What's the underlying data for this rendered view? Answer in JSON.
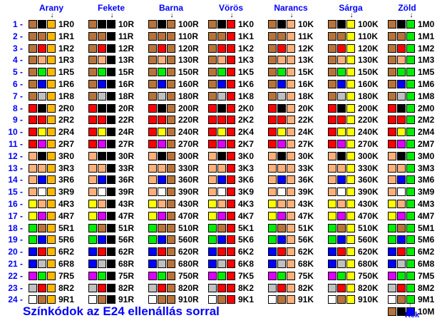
{
  "colors": {
    "0": "#000000",
    "1": "#b8733a",
    "2": "#ff0000",
    "3": "#ffb07a",
    "4": "#ffff00",
    "5": "#00ee00",
    "6": "#0000ff",
    "7": "#dd00ff",
    "8": "#c0c0c0",
    "9": "#ffffff",
    "G": "#ffb800"
  },
  "headers": [
    "Arany",
    "Fekete",
    "Barna",
    "Vörös",
    "Narancs",
    "Sárga",
    "Zöld"
  ],
  "multipliers": [
    "G",
    "0",
    "1",
    "2",
    "3",
    "4",
    "5"
  ],
  "row_numbers": [
    "1 -",
    "2 -",
    "3 -",
    "4 -",
    "5 -",
    "6 -",
    "7 -",
    "8 -",
    "9 -",
    "10 -",
    "11 -",
    "12 -",
    "13 -",
    "14 -",
    "15 -",
    "16 -",
    "17 -",
    "18 -",
    "19 -",
    "20 -",
    "21 -",
    "22 -",
    "23 -",
    "24 -"
  ],
  "e24_digits": [
    "10",
    "11",
    "12",
    "13",
    "15",
    "16",
    "18",
    "20",
    "22",
    "24",
    "27",
    "30",
    "33",
    "36",
    "39",
    "43",
    "47",
    "51",
    "56",
    "62",
    "68",
    "75",
    "82",
    "91"
  ],
  "value_labels": [
    [
      "1R0",
      "1R1",
      "1R2",
      "1R3",
      "1R5",
      "1R6",
      "1R8",
      "2R0",
      "2R2",
      "2R4",
      "2R7",
      "3R0",
      "3R3",
      "3R6",
      "3R9",
      "4R3",
      "4R7",
      "5R1",
      "5R6",
      "6R2",
      "6R8",
      "7R5",
      "8R2",
      "9R1"
    ],
    [
      "10R",
      "11R",
      "12R",
      "13R",
      "15R",
      "16R",
      "18R",
      "20R",
      "22R",
      "24R",
      "27R",
      "30R",
      "33R",
      "36R",
      "39R",
      "43R",
      "47R",
      "51R",
      "56R",
      "62R",
      "68R",
      "75R",
      "82R",
      "91R"
    ],
    [
      "100R",
      "110R",
      "120R",
      "130R",
      "150R",
      "160R",
      "180R",
      "200R",
      "220R",
      "240R",
      "270R",
      "300R",
      "330R",
      "360R",
      "390R",
      "430R",
      "470R",
      "510R",
      "560R",
      "620R",
      "680R",
      "750R",
      "820R",
      "910R"
    ],
    [
      "1K0",
      "1K1",
      "1K2",
      "1K3",
      "1K5",
      "1K6",
      "1K8",
      "2K0",
      "2K2",
      "2K4",
      "2K7",
      "3K0",
      "3K3",
      "3K6",
      "3K9",
      "4K3",
      "4K7",
      "5K1",
      "5K6",
      "6K2",
      "6K8",
      "7K5",
      "8K2",
      "9K1"
    ],
    [
      "10K",
      "11K",
      "12K",
      "13K",
      "15K",
      "16K",
      "18K",
      "20K",
      "22K",
      "24K",
      "27K",
      "30K",
      "33K",
      "36K",
      "39K",
      "43K",
      "47K",
      "51K",
      "56K",
      "62K",
      "68K",
      "75K",
      "82K",
      "91K"
    ],
    [
      "100K",
      "110K",
      "120K",
      "130K",
      "150K",
      "160K",
      "180K",
      "200K",
      "220K",
      "240K",
      "270K",
      "300K",
      "330K",
      "360K",
      "390K",
      "430K",
      "470K",
      "510K",
      "560K",
      "620K",
      "680K",
      "750K",
      "820K",
      "910K"
    ],
    [
      "1M0",
      "1M1",
      "1M2",
      "1M3",
      "1M5",
      "1M6",
      "1M8",
      "2M0",
      "2M2",
      "2M4",
      "2M7",
      "3M0",
      "3M3",
      "3M6",
      "3M9",
      "4M3",
      "4M7",
      "5M1",
      "5M6",
      "6M2",
      "6M8",
      "7M5",
      "8M2",
      "9M1"
    ]
  ],
  "extra_row": {
    "digits": "10",
    "multiplier": "6",
    "label": "10M"
  },
  "kek_label": "Kék",
  "title": "Színkódok az E24 ellenállás sorral",
  "arrow_glyph": "↓",
  "up_arrow_glyph": "↑"
}
